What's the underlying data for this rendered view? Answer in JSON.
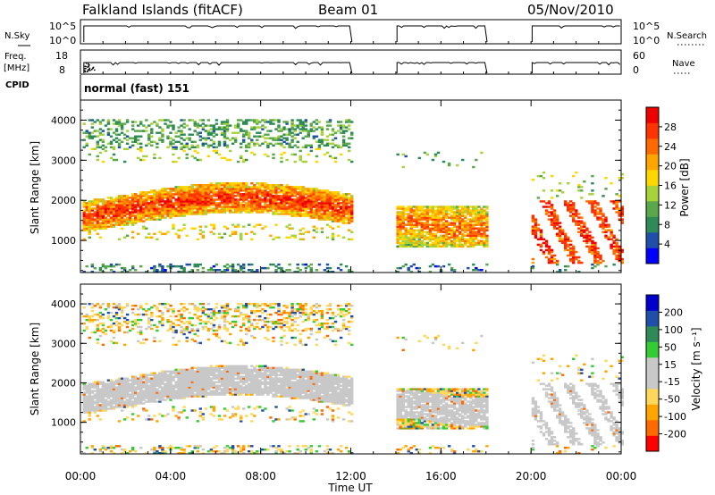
{
  "header": {
    "station": "Falkland Islands (fitACF)",
    "beam": "Beam 01",
    "date": "05/Nov/2010"
  },
  "left_labels": {
    "nsky": "N.Sky",
    "freq": "Freq.",
    "freq_unit": "[MHz]",
    "cpid": "CPID"
  },
  "right_labels": {
    "nsearch": "N.Search",
    "nave": "Nave"
  },
  "cpid_text": "normal (fast) 151",
  "colors": {
    "power": [
      "#0000ff",
      "#1f4fa8",
      "#2e8b57",
      "#5aa84b",
      "#a6d23a",
      "#ffd700",
      "#ffa500",
      "#ff6a00",
      "#ff3300",
      "#ee0000"
    ],
    "velocity": [
      "#ff0000",
      "#ff6a00",
      "#ffa500",
      "#ffd75a",
      "#c8c8c8",
      "#c8c8c8",
      "#33cc33",
      "#2e8b57",
      "#1f4fa8",
      "#0000cc"
    ],
    "ground_scatter": "#c8c8c8"
  },
  "chart_data": [
    {
      "type": "line",
      "panel": "noise",
      "left_ticks": [
        "10^5",
        "10^0"
      ],
      "right_ticks": [
        "10^5",
        "10^0"
      ],
      "data_gaps_hours": [
        [
          12,
          14
        ],
        [
          18,
          20
        ]
      ]
    },
    {
      "type": "line",
      "panel": "frequency",
      "left_ticks": [
        "18",
        "8"
      ],
      "right_ticks": [
        "60",
        "0"
      ],
      "data_gaps_hours": [
        [
          12,
          14
        ],
        [
          18,
          20
        ]
      ]
    },
    {
      "type": "heatmap",
      "panel": "power",
      "ylabel": "Slant Range [km]",
      "yticks": [
        "1000",
        "2000",
        "3000",
        "4000"
      ],
      "ylim": [
        200,
        4500
      ],
      "xlim": [
        0,
        24
      ],
      "colorbar_title": "Power [dB]",
      "colorbar_ticks": [
        "4",
        "8",
        "12",
        "16",
        "20",
        "24",
        "28"
      ],
      "scatter_bands": [
        {
          "t0": 0,
          "t1": 12,
          "r0": 1400,
          "r1": 2200,
          "level": "high"
        },
        {
          "t0": 0,
          "t1": 12,
          "r0": 3300,
          "r1": 4000,
          "level": "medium"
        },
        {
          "t0": 14,
          "t1": 18,
          "r0": 800,
          "r1": 1800,
          "level": "high"
        },
        {
          "t0": 20,
          "t1": 24,
          "r0": 400,
          "r1": 2000,
          "level": "high"
        }
      ]
    },
    {
      "type": "heatmap",
      "panel": "velocity",
      "ylabel": "Slant Range [km]",
      "yticks": [
        "1000",
        "2000",
        "3000",
        "4000"
      ],
      "ylim": [
        200,
        4500
      ],
      "xlim": [
        0,
        24
      ],
      "colorbar_title": "Velocity [m s⁻¹]",
      "colorbar_ticks": [
        "200",
        "100",
        "50",
        "15",
        "-15",
        "-50",
        "-100",
        "-200"
      ]
    }
  ],
  "xaxis": {
    "tick_labels": [
      "00:00",
      "04:00",
      "08:00",
      "12:00",
      "16:00",
      "20:00",
      "00:00"
    ],
    "label": "Time UT"
  }
}
